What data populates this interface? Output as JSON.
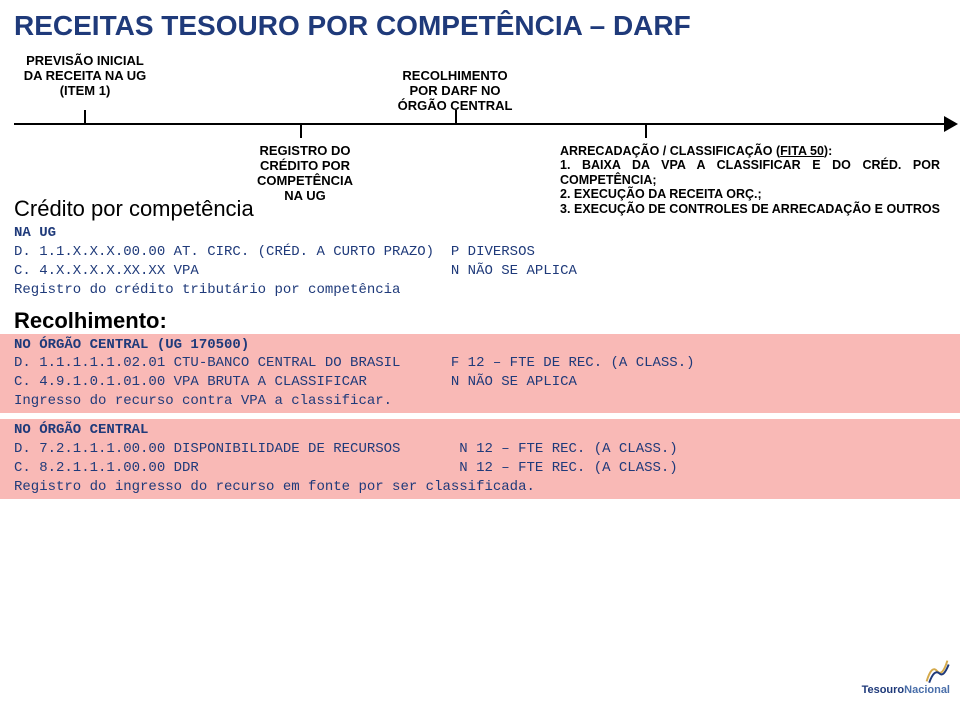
{
  "title": "RECEITAS TESOURO POR COMPETÊNCIA – DARF",
  "timeline": {
    "top_left": "PREVISÃO INICIAL\nDA RECEITA NA UG\n(ITEM 1)",
    "top_right": "RECOLHIMENTO\nPOR DARF NO\nÓRGÃO CENTRAL",
    "bottom_left": "REGISTRO DO\nCRÉDITO POR\nCOMPETÊNCIA\nNA UG",
    "bottom_right_heading": "ARRECADAÇÃO / CLASSIFICAÇÃO (FITA 50):",
    "bottom_right_item1": "1. BAIXA DA VPA A CLASSIFICAR E DO CRÉD. POR COMPETÊNCIA;",
    "bottom_right_item2": "2. EXECUÇÃO DA RECEITA ORÇ.;",
    "bottom_right_item3": "3. EXECUÇÃO DE CONTROLES DE ARRECADAÇÃO E OUTROS"
  },
  "sections": {
    "credito_title": "Crédito por competência",
    "recolhimento_title": "Recolhimento:"
  },
  "credito": {
    "l1": "NA UG",
    "l2": "D. 1.1.X.X.X.00.00 AT. CIRC. (CRÉD. A CURTO PRAZO)  P DIVERSOS",
    "l3": "C. 4.X.X.X.X.XX.XX VPA                              N NÃO SE APLICA",
    "l4": "Registro do crédito tributário por competência"
  },
  "recolhimento": {
    "hdr": "NO ÓRGÃO CENTRAL (UG 170500)",
    "l1": "D. 1.1.1.1.1.02.01 CTU-BANCO CENTRAL DO BRASIL      F 12 – FTE DE REC. (A CLASS.)",
    "l2": "C. 4.9.1.0.1.01.00 VPA BRUTA A CLASSIFICAR          N NÃO SE APLICA",
    "l3": "Ingresso do recurso contra VPA a classificar.",
    "hdr2": "NO ÓRGÃO CENTRAL",
    "l4": "D. 7.2.1.1.1.00.00 DISPONIBILIDADE DE RECURSOS       N 12 – FTE REC. (A CLASS.)",
    "l5": "C. 8.2.1.1.1.00.00 DDR                               N 12 – FTE REC. (A CLASS.)",
    "l6": "Registro do ingresso do recurso em fonte por ser classificada."
  },
  "logo": {
    "text1": "Tesouro",
    "text2": "Nacional"
  },
  "colors": {
    "title": "#1f3a7a",
    "mono": "#1f3a7a",
    "highlight_bg": "#f9b9b6",
    "black": "#000000",
    "logo_gold": "#d4a94a",
    "logo_blue": "#1f3a7a"
  }
}
